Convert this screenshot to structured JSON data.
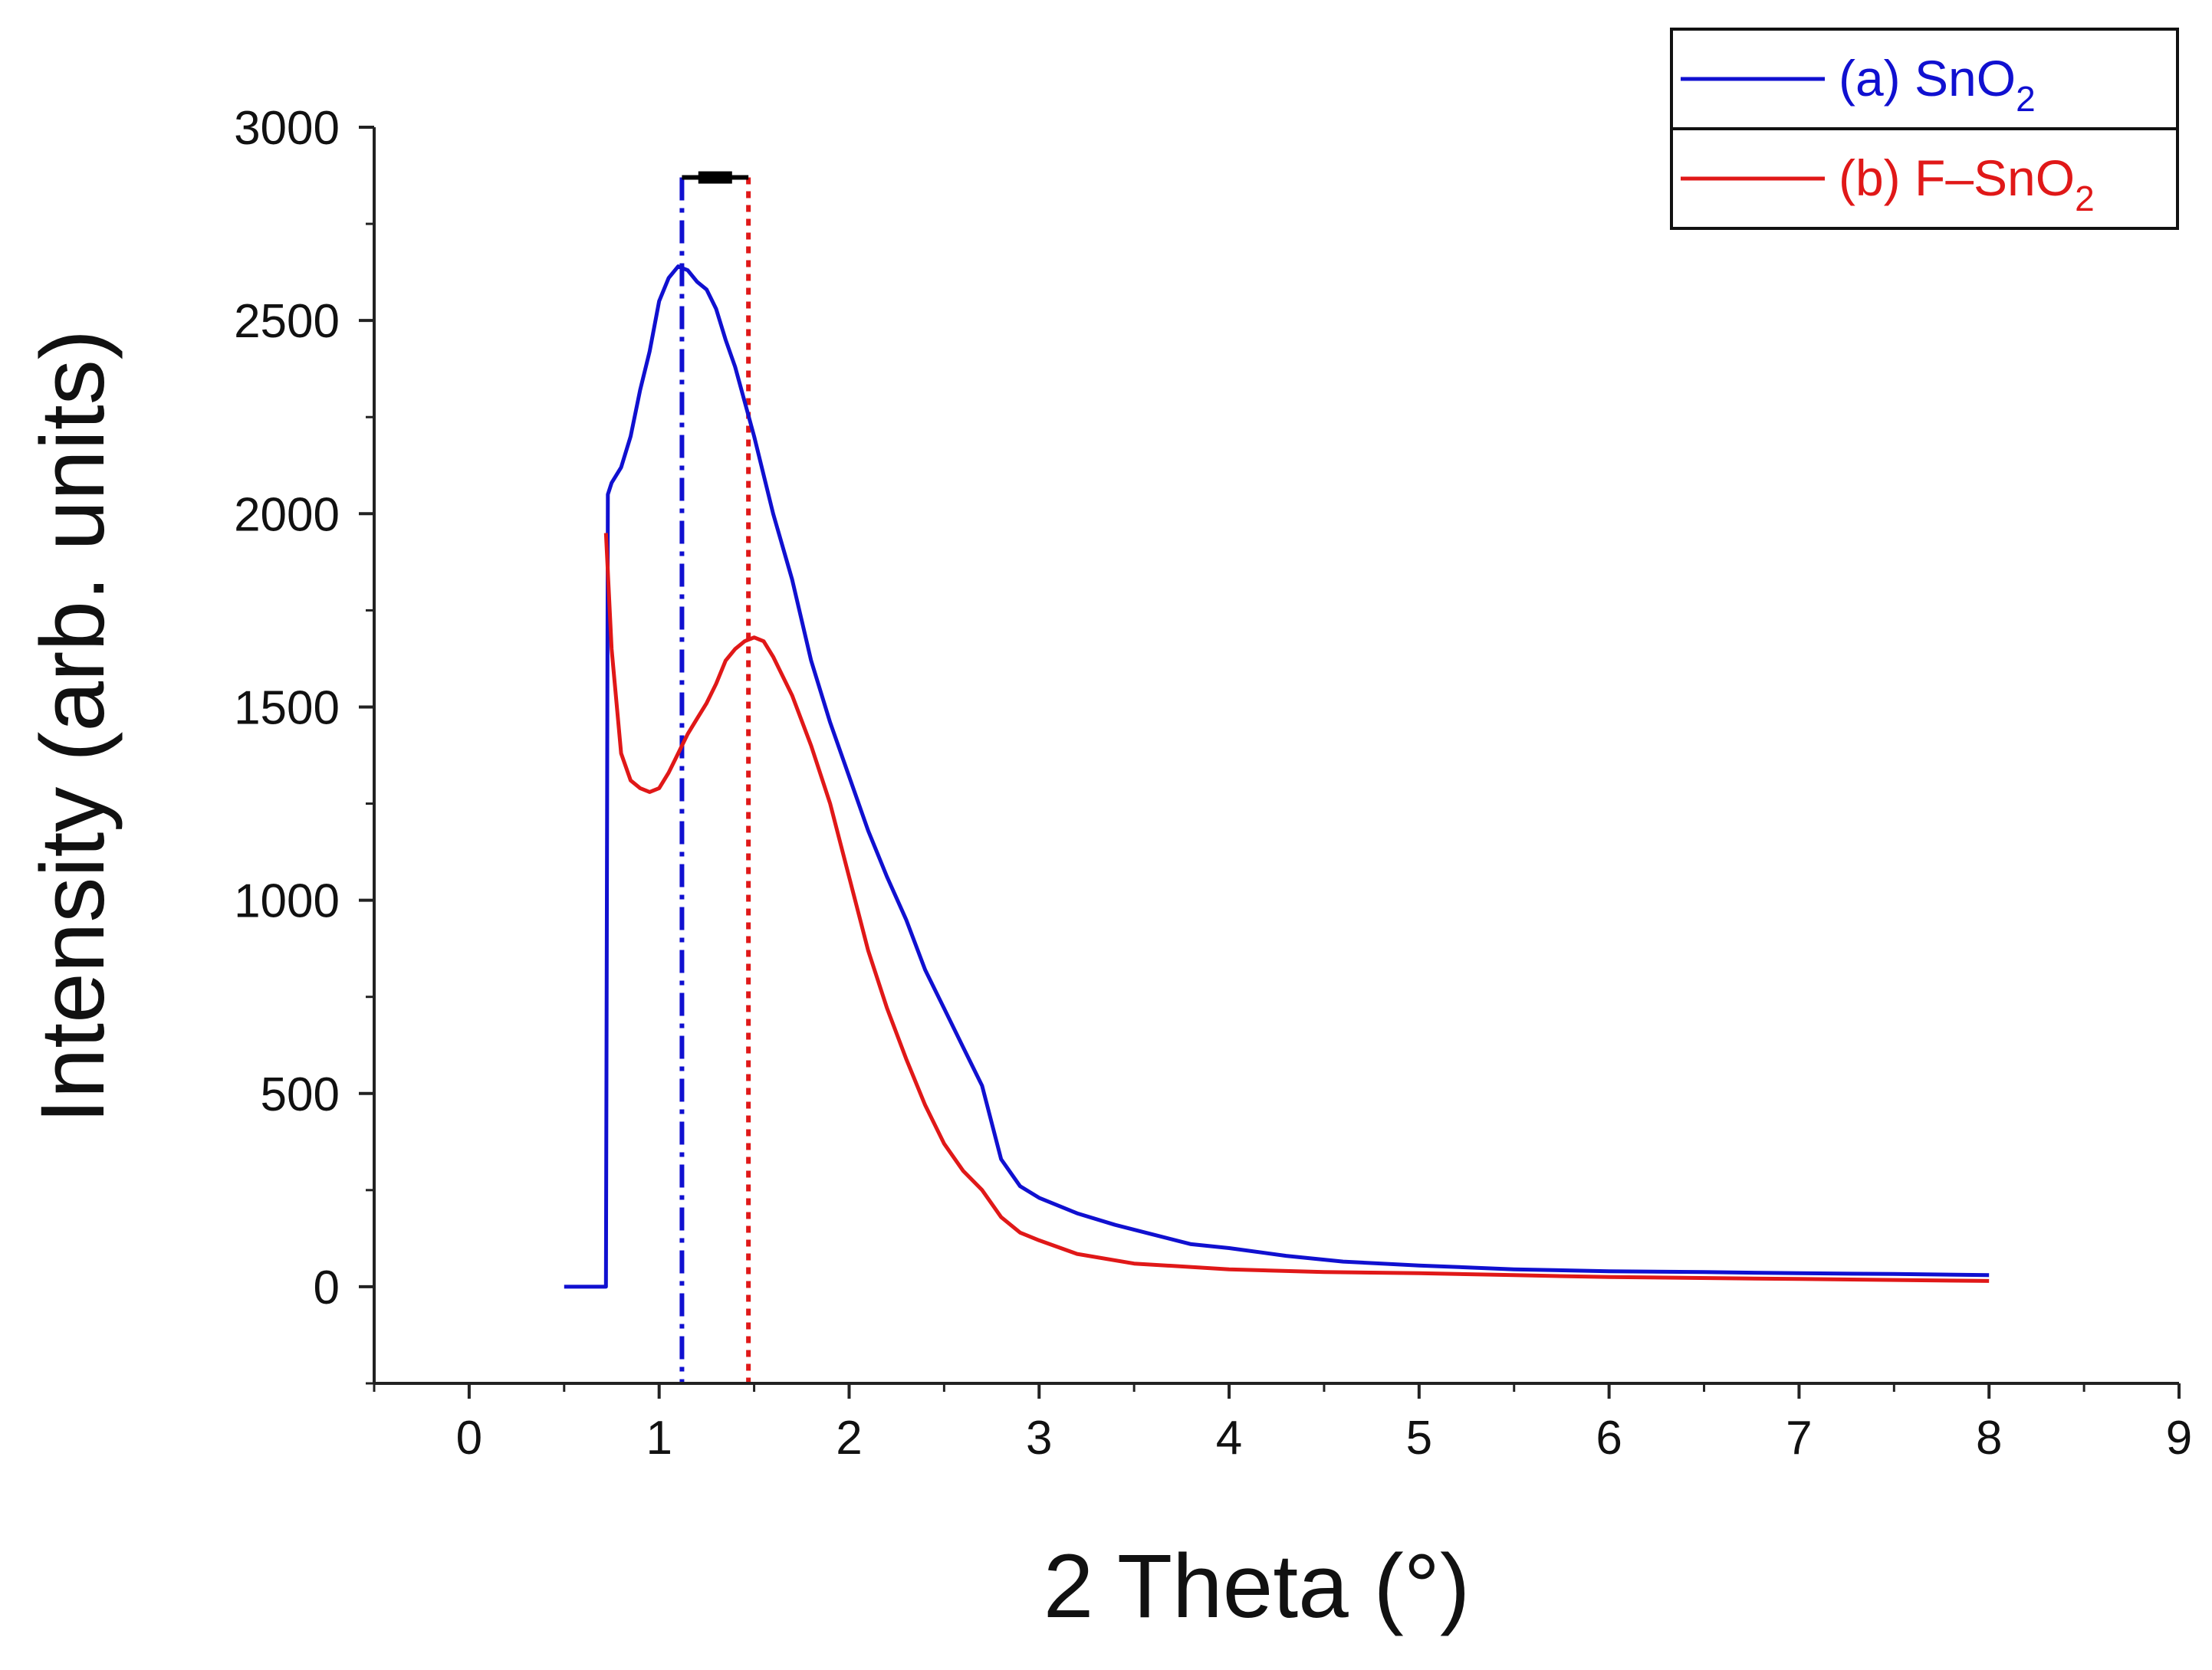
{
  "chart_data": {
    "type": "line",
    "title": "",
    "xlabel": "2 Theta (°)",
    "ylabel": "Intensity (arb. units)",
    "xlim": [
      -0.5,
      9
    ],
    "ylim": [
      -250,
      3000
    ],
    "x_ticks": [
      0,
      1,
      2,
      3,
      4,
      5,
      6,
      7,
      8,
      9
    ],
    "x_tick_labels": [
      "0",
      "1",
      "2",
      "3",
      "4",
      "5",
      "6",
      "7",
      "8",
      "9"
    ],
    "y_ticks": [
      0,
      500,
      1000,
      1500,
      2000,
      2500,
      3000
    ],
    "y_tick_labels": [
      "0",
      "500",
      "1000",
      "1500",
      "2000",
      "2500",
      "3000"
    ],
    "grid": false,
    "legend_position": "top-right",
    "series": [
      {
        "name_prefix": "(a) SnO",
        "name_subscript": "2",
        "color": "#1010d0",
        "x": [
          0.5,
          0.72,
          0.73,
          0.75,
          0.8,
          0.85,
          0.9,
          0.95,
          1.0,
          1.05,
          1.1,
          1.15,
          1.2,
          1.25,
          1.3,
          1.35,
          1.4,
          1.5,
          1.6,
          1.7,
          1.8,
          1.9,
          2.0,
          2.1,
          2.2,
          2.3,
          2.4,
          2.5,
          2.6,
          2.7,
          2.8,
          2.9,
          3.0,
          3.2,
          3.4,
          3.6,
          3.8,
          4.0,
          4.3,
          4.6,
          5.0,
          5.5,
          6.0,
          6.5,
          7.0,
          7.5,
          8.0
        ],
        "y": [
          0,
          0,
          2050,
          2080,
          2120,
          2200,
          2320,
          2420,
          2550,
          2610,
          2640,
          2630,
          2600,
          2580,
          2530,
          2450,
          2380,
          2200,
          2000,
          1830,
          1620,
          1460,
          1320,
          1180,
          1060,
          950,
          820,
          720,
          620,
          520,
          330,
          260,
          230,
          190,
          160,
          135,
          110,
          100,
          80,
          65,
          55,
          45,
          40,
          38,
          35,
          33,
          30
        ]
      },
      {
        "name_prefix": "(b) F–SnO",
        "name_subscript": "2",
        "color": "#e01818",
        "x": [
          0.72,
          0.75,
          0.8,
          0.85,
          0.9,
          0.95,
          1.0,
          1.05,
          1.1,
          1.15,
          1.2,
          1.25,
          1.3,
          1.35,
          1.4,
          1.45,
          1.5,
          1.55,
          1.6,
          1.7,
          1.8,
          1.9,
          2.0,
          2.1,
          2.2,
          2.3,
          2.4,
          2.5,
          2.6,
          2.7,
          2.8,
          2.9,
          3.0,
          3.2,
          3.5,
          4.0,
          4.5,
          5.0,
          5.5,
          6.0,
          7.0,
          8.0
        ],
        "y": [
          1950,
          1650,
          1380,
          1310,
          1290,
          1280,
          1290,
          1330,
          1380,
          1430,
          1470,
          1510,
          1560,
          1620,
          1650,
          1670,
          1680,
          1670,
          1630,
          1530,
          1400,
          1250,
          1060,
          870,
          720,
          590,
          470,
          370,
          300,
          250,
          180,
          140,
          120,
          85,
          60,
          45,
          38,
          35,
          30,
          25,
          20,
          15
        ]
      }
    ],
    "reference_lines": [
      {
        "x": 1.12,
        "color": "#1010d0",
        "style": "dash-dot",
        "y_top": 2870
      },
      {
        "x": 1.47,
        "color": "#e01818",
        "style": "dotted",
        "y_top": 2870
      }
    ],
    "bracket": {
      "x_start": 1.12,
      "x_end": 1.47,
      "y": 2870,
      "color": "#000000"
    }
  }
}
